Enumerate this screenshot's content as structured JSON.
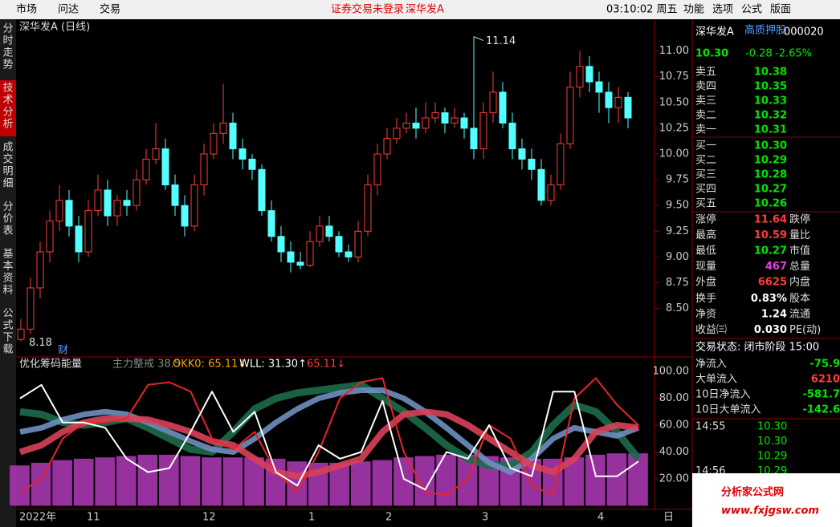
{
  "toolbar": {
    "left": [
      "市场",
      "问达",
      "交易"
    ],
    "status": "证券交易未登录",
    "stock": "深华发A",
    "clock": "03:10:02 周五",
    "menu": [
      "功能",
      "选项",
      "公式",
      "版面"
    ]
  },
  "side_tabs": [
    "分时走势",
    "技术分析",
    "成交明细",
    "分价表",
    "基本资料",
    "公式下载"
  ],
  "chart_data": [
    {
      "type": "candlestick",
      "title": "深华发A (日线)",
      "up_color": "#ff3c3c",
      "down_color": "#54ffff",
      "categories": [
        "2022年",
        null,
        null,
        null,
        null,
        null,
        null,
        "11",
        null,
        null,
        null,
        null,
        null,
        null,
        null,
        null,
        null,
        null,
        null,
        "12",
        null,
        null,
        null,
        null,
        null,
        null,
        null,
        null,
        null,
        null,
        "1",
        null,
        null,
        null,
        null,
        null,
        null,
        null,
        "2",
        null,
        null,
        null,
        null,
        null,
        null,
        null,
        null,
        null,
        "3",
        null,
        null,
        null,
        null,
        null,
        null,
        null,
        null,
        null,
        null,
        null,
        "4",
        null,
        null,
        null
      ],
      "open": [
        8.2,
        8.3,
        8.7,
        9.05,
        9.35,
        9.55,
        9.3,
        9.05,
        9.45,
        9.65,
        9.4,
        9.55,
        9.5,
        9.75,
        9.95,
        10.05,
        9.7,
        9.5,
        9.3,
        9.7,
        10.0,
        10.2,
        10.3,
        10.05,
        9.95,
        9.85,
        9.45,
        9.2,
        9.05,
        8.95,
        8.92,
        9.15,
        9.3,
        9.2,
        9.05,
        9.0,
        9.25,
        9.7,
        10.0,
        10.15,
        10.25,
        10.3,
        10.25,
        10.35,
        10.4,
        10.3,
        10.35,
        10.25,
        10.05,
        10.4,
        10.6,
        10.3,
        10.05,
        9.95,
        9.85,
        9.55,
        9.7,
        10.1,
        10.65,
        10.85,
        10.7,
        10.6,
        10.45,
        10.55
      ],
      "high": [
        8.4,
        8.8,
        9.15,
        9.45,
        9.7,
        9.65,
        9.4,
        9.55,
        9.8,
        9.75,
        9.6,
        9.65,
        9.85,
        10.05,
        10.3,
        10.15,
        9.8,
        9.6,
        9.8,
        10.1,
        10.3,
        10.68,
        10.4,
        10.15,
        10.0,
        9.9,
        9.55,
        9.3,
        9.15,
        9.05,
        9.25,
        9.4,
        9.4,
        9.25,
        9.12,
        9.35,
        9.8,
        10.1,
        10.25,
        10.35,
        10.4,
        10.45,
        10.5,
        10.5,
        10.45,
        10.45,
        10.4,
        11.14,
        10.5,
        10.8,
        10.7,
        10.4,
        10.15,
        10.05,
        9.95,
        9.8,
        10.2,
        10.8,
        11.0,
        10.95,
        10.8,
        10.7,
        10.65,
        10.6
      ],
      "low": [
        8.18,
        8.25,
        8.6,
        8.95,
        9.25,
        9.2,
        8.95,
        9.0,
        9.4,
        9.3,
        9.3,
        9.4,
        9.45,
        9.7,
        9.9,
        9.65,
        9.4,
        9.2,
        9.25,
        9.6,
        9.95,
        10.1,
        9.95,
        9.85,
        9.75,
        9.4,
        9.15,
        8.95,
        8.85,
        8.88,
        8.9,
        9.1,
        9.15,
        9.0,
        8.95,
        8.95,
        9.2,
        9.6,
        9.95,
        10.1,
        10.2,
        10.15,
        10.2,
        10.3,
        10.2,
        10.25,
        10.15,
        9.95,
        9.95,
        10.3,
        10.25,
        9.95,
        9.85,
        9.75,
        9.5,
        9.5,
        9.65,
        10.05,
        10.55,
        10.6,
        10.4,
        10.3,
        10.3,
        10.25
      ],
      "close": [
        8.3,
        8.7,
        9.05,
        9.35,
        9.55,
        9.3,
        9.05,
        9.45,
        9.65,
        9.4,
        9.55,
        9.5,
        9.75,
        9.95,
        10.05,
        9.7,
        9.5,
        9.3,
        9.7,
        10.0,
        10.2,
        10.3,
        10.05,
        9.95,
        9.85,
        9.45,
        9.2,
        9.05,
        8.95,
        8.92,
        9.15,
        9.3,
        9.2,
        9.05,
        9.0,
        9.25,
        9.7,
        10.0,
        10.15,
        10.25,
        10.3,
        10.25,
        10.35,
        10.4,
        10.3,
        10.35,
        10.25,
        10.05,
        10.4,
        10.6,
        10.3,
        10.05,
        9.95,
        9.85,
        9.55,
        9.7,
        10.1,
        10.65,
        10.85,
        10.7,
        10.6,
        10.45,
        10.55,
        10.35
      ],
      "ylim": [
        8.03,
        11.3
      ],
      "yticks": [
        {
          "value": 8.5,
          "label": "8.50"
        },
        {
          "value": 8.75,
          "label": "8.75"
        },
        {
          "value": 9,
          "label": "9.00"
        },
        {
          "value": 9.25,
          "label": "9.25"
        },
        {
          "value": 9.5,
          "label": "9.50"
        },
        {
          "value": 9.75,
          "label": "9.75"
        },
        {
          "value": 10,
          "label": "10.00"
        },
        {
          "value": 10.25,
          "label": "10.25"
        },
        {
          "value": 10.5,
          "label": "10.50"
        },
        {
          "value": 10.75,
          "label": "10.75"
        },
        {
          "value": 11,
          "label": "11.00"
        }
      ],
      "annotations": [
        {
          "text": "11.14"
        },
        {
          "text": "8.18"
        }
      ],
      "marker": "财"
    },
    {
      "type": "line",
      "title": "优化筹码能量",
      "header_texts": [
        "主力整戒 38.5",
        "OKK0: 65.11↓",
        "WLL: 31.30↑",
        "65.11↓"
      ],
      "ylim": [
        -2.7,
        109.6
      ],
      "yticks": [
        {
          "value": 20,
          "label": "20.00"
        },
        {
          "value": 40,
          "label": "40.00"
        },
        {
          "value": 60,
          "label": "60.00"
        },
        {
          "value": 80,
          "label": "80.00"
        },
        {
          "value": 100,
          "label": "100.00"
        }
      ],
      "bars": {
        "color": "#b03ab8",
        "values": [
          30,
          32,
          34,
          35,
          36,
          37,
          38,
          38,
          37,
          36,
          36,
          36,
          35,
          33,
          32,
          32,
          33,
          34,
          36,
          37,
          38,
          38,
          37,
          36,
          35,
          35,
          36,
          38,
          39,
          39
        ]
      },
      "series": [
        {
          "color": "#1d6b4a",
          "width": 9,
          "values": [
            70,
            68,
            62,
            60,
            62,
            65,
            58,
            50,
            42,
            40,
            55,
            72,
            80,
            84,
            86,
            88,
            90,
            80,
            70,
            58,
            45,
            35,
            30,
            30,
            40,
            60,
            75,
            70,
            55,
            35
          ]
        },
        {
          "color": "#6f8fc0",
          "width": 7,
          "values": [
            55,
            58,
            64,
            68,
            70,
            68,
            62,
            55,
            48,
            42,
            40,
            50,
            62,
            72,
            80,
            84,
            86,
            86,
            80,
            70,
            58,
            45,
            32,
            25,
            35,
            50,
            58,
            55,
            52,
            58
          ]
        },
        {
          "color": "#d9405a",
          "width": 8,
          "values": [
            40,
            45,
            55,
            62,
            65,
            65,
            64,
            60,
            55,
            48,
            45,
            35,
            25,
            22,
            25,
            30,
            35,
            55,
            68,
            70,
            68,
            60,
            50,
            40,
            30,
            25,
            35,
            55,
            60,
            58
          ]
        },
        {
          "color": "#e8242a",
          "width": 2,
          "values": [
            10,
            20,
            50,
            62,
            62,
            65,
            90,
            92,
            85,
            50,
            42,
            55,
            25,
            10,
            40,
            80,
            92,
            95,
            40,
            10,
            8,
            20,
            60,
            50,
            15,
            8,
            80,
            95,
            75,
            60
          ]
        },
        {
          "color": "#ffffff",
          "width": 2,
          "values": [
            80,
            90,
            62,
            62,
            58,
            35,
            25,
            28,
            55,
            85,
            55,
            70,
            25,
            15,
            45,
            35,
            40,
            78,
            20,
            12,
            40,
            35,
            60,
            28,
            22,
            85,
            85,
            22,
            22,
            33
          ]
        }
      ]
    }
  ],
  "date_button": "日",
  "quote": {
    "name": "深华发A",
    "tag": "高质押股",
    "code": "000020",
    "price": "10.30",
    "change": "-0.28",
    "pct": "-2.65%",
    "asks": [
      [
        "卖五",
        "10.38"
      ],
      [
        "卖四",
        "10.35"
      ],
      [
        "卖三",
        "10.33"
      ],
      [
        "卖二",
        "10.32"
      ],
      [
        "卖一",
        "10.31"
      ]
    ],
    "bids": [
      [
        "买一",
        "10.30"
      ],
      [
        "买二",
        "10.29"
      ],
      [
        "买三",
        "10.28"
      ],
      [
        "买四",
        "10.27"
      ],
      [
        "买五",
        "10.26"
      ]
    ],
    "stats": [
      [
        "涨停",
        "11.64",
        "跌停"
      ],
      [
        "最高",
        "10.59",
        "量比"
      ],
      [
        "最低",
        "10.27",
        "市值"
      ],
      [
        "现量",
        "467",
        "总量"
      ],
      [
        "外盘",
        "6625",
        "内盘"
      ],
      [
        "换手",
        "0.83%",
        "股本"
      ],
      [
        "净资",
        "1.24",
        "流通"
      ],
      [
        "收益㈢",
        "0.030",
        "PE(动)"
      ]
    ],
    "state": "交易状态: 闭市阶段 15:00",
    "flows": [
      [
        "净流入",
        "-75.9"
      ],
      [
        "大单流入",
        "6210"
      ],
      [
        "10日净流入",
        "-581.7"
      ],
      [
        "10日大单流入",
        "-142.6"
      ]
    ],
    "ticks": [
      [
        "14:55",
        "10.30"
      ],
      [
        "",
        "10.30"
      ],
      [
        "",
        "10.29"
      ],
      [
        "14:56",
        "10.29"
      ]
    ]
  },
  "logo": {
    "name": "分析家公式网",
    "url": "www.fxjgsw.com"
  }
}
